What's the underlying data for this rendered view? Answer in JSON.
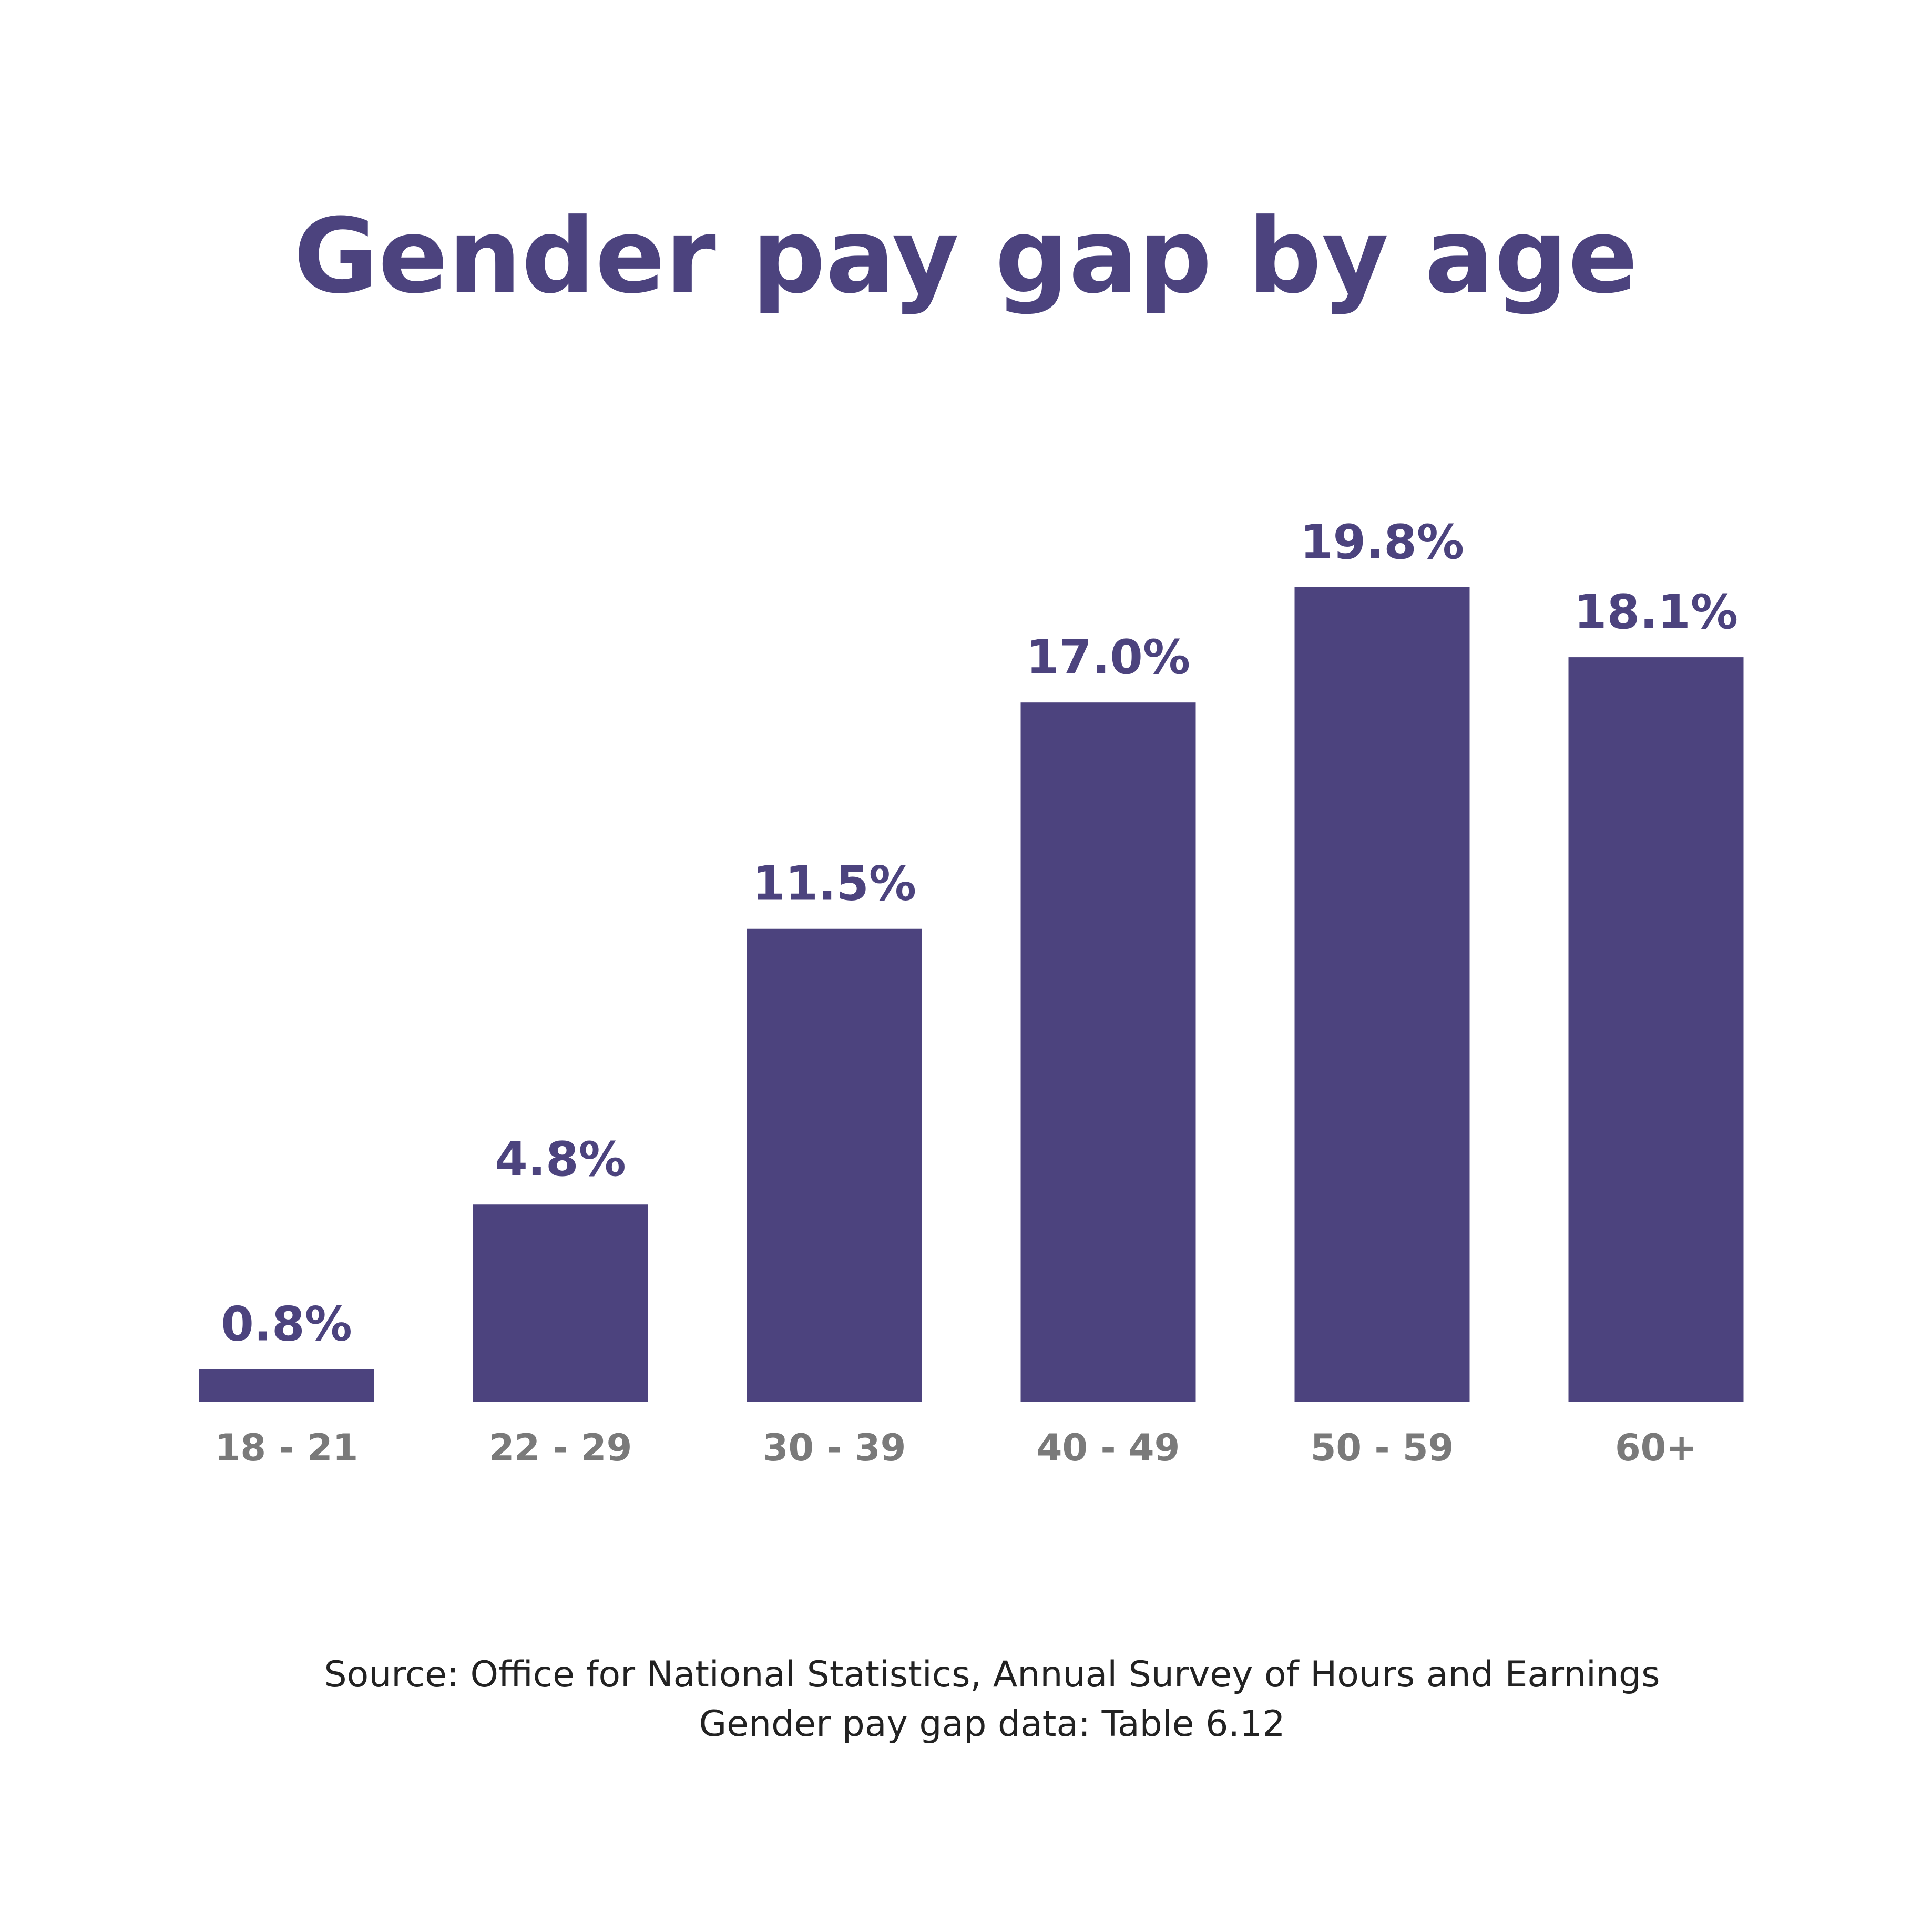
{
  "colors": {
    "bar": "#4c437e",
    "title": "#4c437e",
    "value_label": "#4c437e",
    "tick_label": "#7a7a7a",
    "source": "#222222",
    "background": "#ffffff"
  },
  "source": {
    "line1": "Source: Office for National Statistics, Annual Survey of Hours and Earnings",
    "line2": "Gender pay gap data: Table 6.12"
  },
  "chart_data": {
    "type": "bar",
    "title": "Gender pay gap by age",
    "xlabel": "",
    "ylabel": "",
    "categories": [
      "18 - 21",
      "22 - 29",
      "30 - 39",
      "40 - 49",
      "50 - 59",
      "60+"
    ],
    "values": [
      0.8,
      4.8,
      11.5,
      17.0,
      19.8,
      18.1
    ],
    "value_labels": [
      "0.8%",
      "4.8%",
      "11.5%",
      "17.0%",
      "19.8%",
      "18.1%"
    ],
    "ylim": [
      0,
      20
    ],
    "grid": false,
    "legend": "none"
  }
}
